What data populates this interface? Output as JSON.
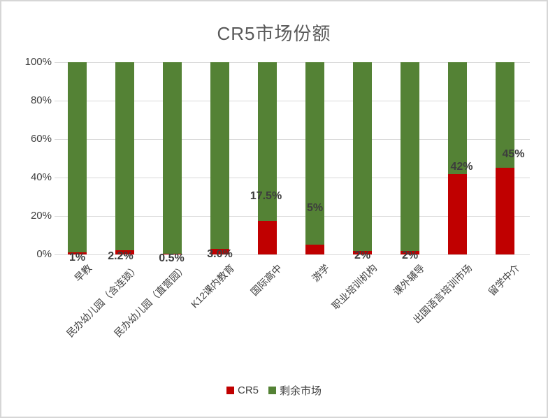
{
  "title": "CR5市场份额",
  "legend": {
    "items": [
      {
        "label": "CR5",
        "color": "#c00000"
      },
      {
        "label": "剩余市场",
        "color": "#548235"
      }
    ]
  },
  "chart_data": {
    "type": "bar",
    "subtype": "stacked-100",
    "title": "CR5市场份额",
    "xlabel": "",
    "ylabel": "",
    "ylim": [
      0,
      100
    ],
    "yticks": [
      "0%",
      "20%",
      "40%",
      "60%",
      "80%",
      "100%"
    ],
    "ytick_values": [
      0,
      20,
      40,
      60,
      80,
      100
    ],
    "grid": true,
    "legend_position": "bottom",
    "categories": [
      "早教",
      "民办幼儿园（含连锁）",
      "民办幼儿园（直营园）",
      "K12课内教育",
      "国际高中",
      "游学",
      "职业培训机构",
      "课外辅导",
      "出国语言培训市场",
      "留学中介"
    ],
    "series": [
      {
        "name": "CR5",
        "color": "#c00000",
        "values": [
          1,
          2.2,
          0.5,
          3.0,
          17.5,
          5,
          2,
          2,
          42,
          45
        ]
      },
      {
        "name": "剩余市场",
        "color": "#548235",
        "values": [
          99,
          97.8,
          99.5,
          97,
          82.5,
          95,
          98,
          98,
          58,
          55
        ]
      }
    ],
    "value_labels": [
      "1%",
      "2.2%",
      "0.5%",
      "3.0%",
      "17.5%",
      "5%",
      "2%",
      "2%",
      "42%",
      "45%"
    ]
  }
}
